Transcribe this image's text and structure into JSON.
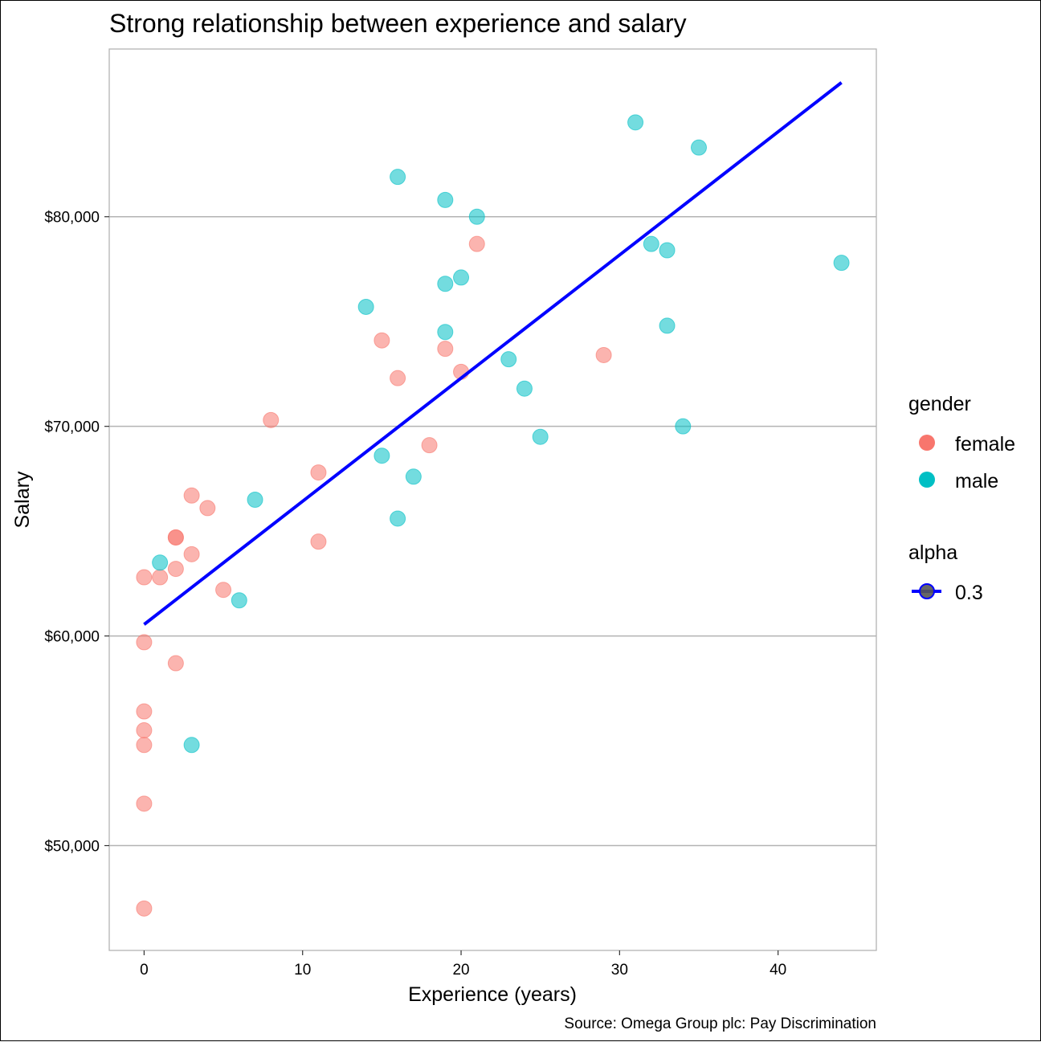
{
  "chart_data": {
    "type": "scatter",
    "title": "Strong relationship between experience and salary",
    "xlabel": "Experience (years)",
    "ylabel": "Salary",
    "caption": "Source: Omega Group plc: Pay Discrimination",
    "xlim": [
      -2.2,
      46.2
    ],
    "ylim": [
      45000,
      88000
    ],
    "x_ticks": [
      0,
      10,
      20,
      30,
      40
    ],
    "y_ticks": [
      50000,
      60000,
      70000,
      80000
    ],
    "y_tick_labels": [
      "$50,000",
      "$60,000",
      "$70,000",
      "$80,000"
    ],
    "grid": "horizontal-major",
    "legend_position": "right",
    "legend_color_title": "gender",
    "legend_alpha_title": "alpha",
    "legend_alpha_label": "0.3",
    "colors": {
      "female": "#F8766D",
      "male": "#00BFC4",
      "trend": "#0000FF"
    },
    "series": [
      {
        "name": "female",
        "points": [
          [
            0,
            62800
          ],
          [
            0,
            59700
          ],
          [
            0,
            56400
          ],
          [
            0,
            55500
          ],
          [
            0,
            54800
          ],
          [
            0,
            52000
          ],
          [
            0,
            47000
          ],
          [
            1,
            62800
          ],
          [
            2,
            64700
          ],
          [
            2,
            64700
          ],
          [
            2,
            63200
          ],
          [
            2,
            58700
          ],
          [
            3,
            66700
          ],
          [
            3,
            63900
          ],
          [
            4,
            66100
          ],
          [
            5,
            62200
          ],
          [
            8,
            70300
          ],
          [
            11,
            67800
          ],
          [
            11,
            64500
          ],
          [
            15,
            74100
          ],
          [
            16,
            72300
          ],
          [
            18,
            69100
          ],
          [
            19,
            73700
          ],
          [
            20,
            72600
          ],
          [
            21,
            78700
          ],
          [
            29,
            73400
          ]
        ]
      },
      {
        "name": "male",
        "points": [
          [
            1,
            63500
          ],
          [
            3,
            54800
          ],
          [
            6,
            61700
          ],
          [
            7,
            66500
          ],
          [
            14,
            75700
          ],
          [
            15,
            68600
          ],
          [
            16,
            81900
          ],
          [
            16,
            65600
          ],
          [
            17,
            67600
          ],
          [
            19,
            80800
          ],
          [
            19,
            76800
          ],
          [
            19,
            74500
          ],
          [
            20,
            77100
          ],
          [
            21,
            80000
          ],
          [
            23,
            73200
          ],
          [
            24,
            71800
          ],
          [
            25,
            69500
          ],
          [
            31,
            84500
          ],
          [
            32,
            78700
          ],
          [
            33,
            78400
          ],
          [
            33,
            74800
          ],
          [
            34,
            70000
          ],
          [
            35,
            83300
          ],
          [
            44,
            77800
          ]
        ]
      }
    ],
    "trend_line": {
      "x": [
        0,
        44
      ],
      "y": [
        60550,
        86400
      ]
    }
  }
}
